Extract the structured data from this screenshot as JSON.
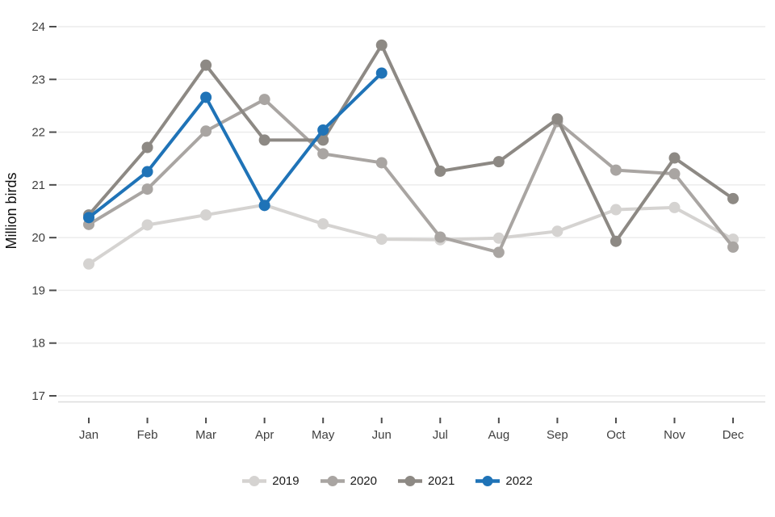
{
  "chart_data": {
    "type": "line",
    "title": "",
    "ylabel": "Million birds",
    "xlabel": "",
    "categories": [
      "Jan",
      "Feb",
      "Mar",
      "Apr",
      "May",
      "Jun",
      "Jul",
      "Aug",
      "Sep",
      "Oct",
      "Nov",
      "Dec"
    ],
    "ylim": [
      17,
      24
    ],
    "yticks": [
      17,
      18,
      19,
      20,
      21,
      22,
      23,
      24
    ],
    "grid": "horizontal-only",
    "legend_position": "bottom-center",
    "series": [
      {
        "name": "2019",
        "color": "#d5d3d1",
        "values": [
          19.5,
          20.24,
          20.43,
          20.62,
          20.26,
          19.97,
          19.96,
          19.99,
          20.12,
          20.53,
          20.57,
          19.97
        ]
      },
      {
        "name": "2020",
        "color": "#a9a5a2",
        "values": [
          20.25,
          20.92,
          22.02,
          22.62,
          21.59,
          21.42,
          20.01,
          19.72,
          22.2,
          21.28,
          21.21,
          19.82
        ]
      },
      {
        "name": "2021",
        "color": "#8d8984",
        "values": [
          20.43,
          21.71,
          23.27,
          21.85,
          21.85,
          23.65,
          21.26,
          21.44,
          22.25,
          19.93,
          21.51,
          20.74
        ]
      },
      {
        "name": "2022",
        "color": "#1f73b7",
        "values": [
          20.38,
          21.25,
          22.66,
          20.61,
          22.04,
          23.12
        ]
      }
    ]
  },
  "colors": {
    "background": "#ffffff",
    "gridline": "#ececec",
    "axis_line": "#dcdcdc",
    "tick_mark": "#4d4d4d",
    "tick_label": "#3f3f3f",
    "axis_title": "#0d0d0d",
    "legend_label": "#1a1a1a"
  }
}
